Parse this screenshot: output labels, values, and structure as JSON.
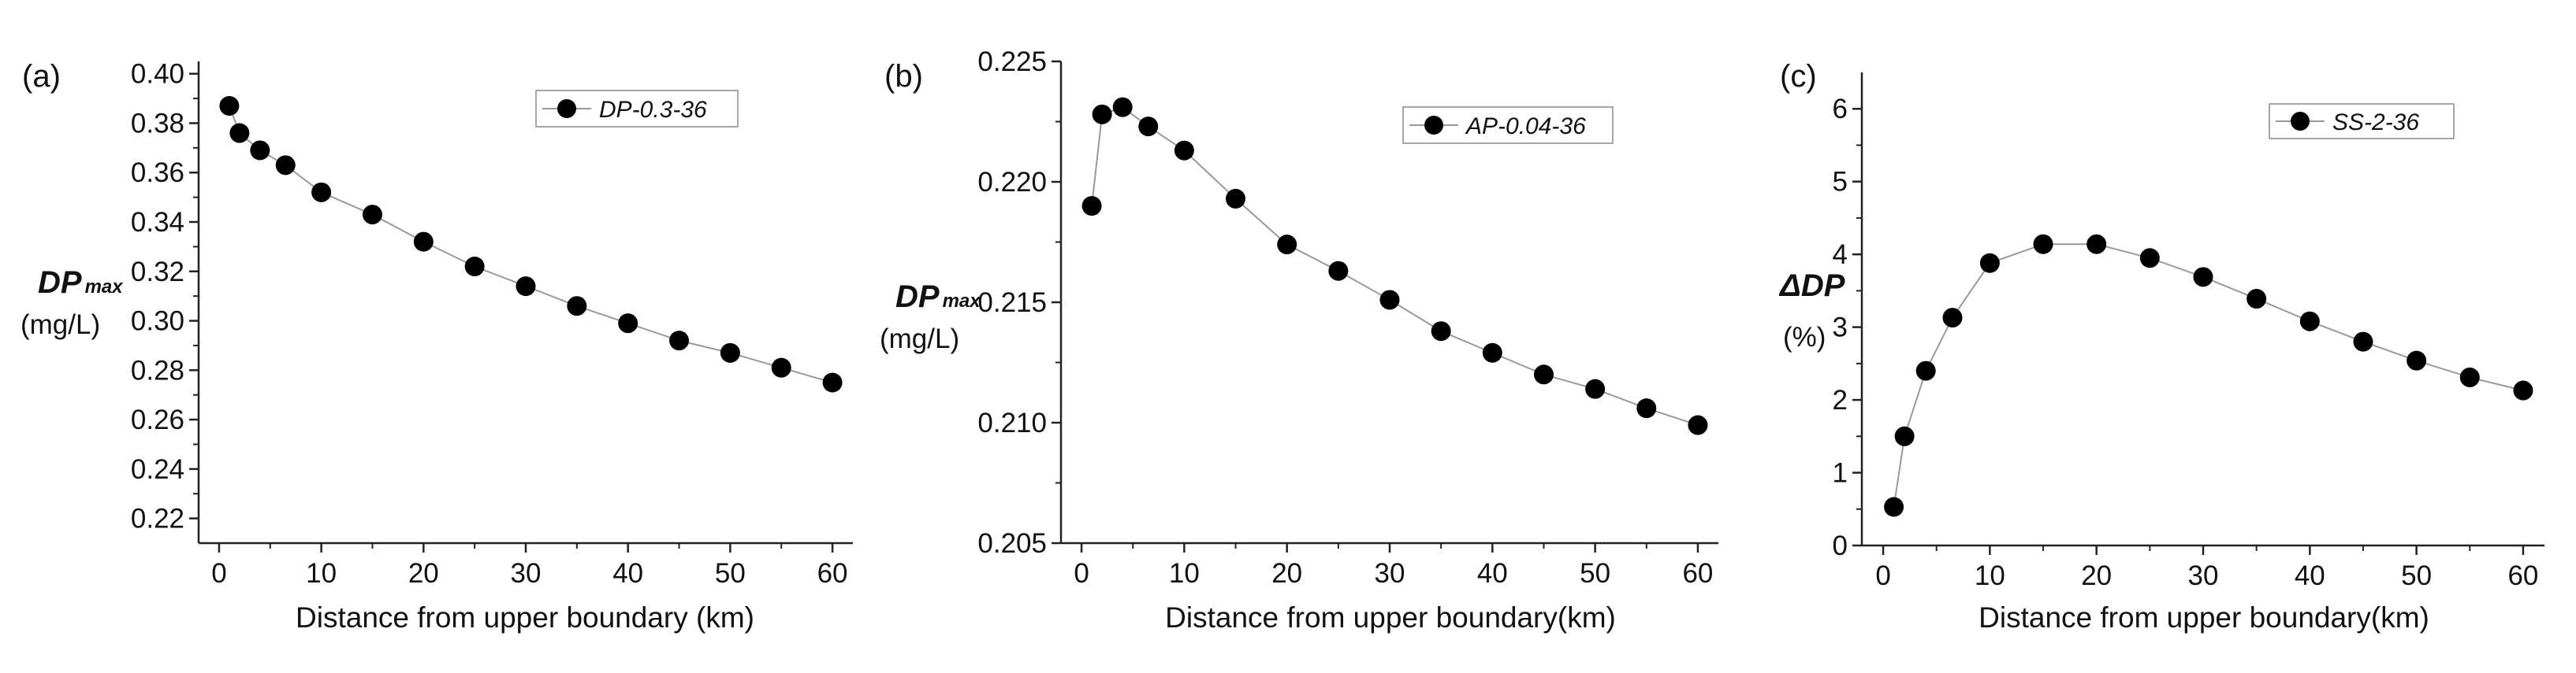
{
  "chart_data": [
    {
      "type": "line",
      "panel_label": "(a)",
      "xlabel": "Distance from upper boundary (km)",
      "ylabel": {
        "main": "DP",
        "sub": "max",
        "unit": "(mg/L)"
      },
      "xlim": [
        -2,
        62
      ],
      "ylim": [
        0.21,
        0.405
      ],
      "xticks": [
        0,
        10,
        20,
        30,
        40,
        50,
        60
      ],
      "xtick_labels": [
        "0",
        "10",
        "20",
        "30",
        "40",
        "50",
        "60"
      ],
      "yticks": [
        0.22,
        0.24,
        0.26,
        0.28,
        0.3,
        0.32,
        0.34,
        0.36,
        0.38,
        0.4
      ],
      "ytick_labels": [
        "0.22",
        "0.24",
        "0.26",
        "0.28",
        "0.30",
        "0.32",
        "0.34",
        "0.36",
        "0.38",
        "0.40"
      ],
      "legend": {
        "position": "top-right",
        "prefix": "DP",
        "suffix": "-0.3-36"
      },
      "grid": false,
      "series": [
        {
          "name": "DP-0.3-36",
          "x": [
            1,
            2,
            4,
            6.5,
            10,
            15,
            20,
            25,
            30,
            35,
            40,
            45,
            50,
            55,
            60
          ],
          "y": [
            0.387,
            0.376,
            0.369,
            0.363,
            0.352,
            0.343,
            0.332,
            0.322,
            0.314,
            0.306,
            0.299,
            0.292,
            0.287,
            0.281,
            0.275
          ]
        }
      ]
    },
    {
      "type": "line",
      "panel_label": "(b)",
      "xlabel": "Distance from upper boundary(km)",
      "ylabel": {
        "main": "DP",
        "sub": "max",
        "unit": "(mg/L)"
      },
      "xlim": [
        -2,
        62
      ],
      "ylim": [
        0.205,
        0.225
      ],
      "xticks": [
        0,
        10,
        20,
        30,
        40,
        50,
        60
      ],
      "xtick_labels": [
        "0",
        "10",
        "20",
        "30",
        "40",
        "50",
        "60"
      ],
      "yticks": [
        0.205,
        0.21,
        0.215,
        0.22,
        0.225
      ],
      "ytick_labels": [
        "0.205",
        "0.210",
        "0.215",
        "0.220",
        "0.225"
      ],
      "legend": {
        "position": "top-right",
        "prefix": "AP",
        "suffix": "-0.04-36"
      },
      "grid": false,
      "series": [
        {
          "name": "AP-0.04-36",
          "x": [
            1,
            2,
            4,
            6.5,
            10,
            15,
            20,
            25,
            30,
            35,
            40,
            45,
            50,
            55,
            60
          ],
          "y": [
            0.219,
            0.2228,
            0.2231,
            0.2223,
            0.2213,
            0.2193,
            0.2174,
            0.2163,
            0.2151,
            0.2138,
            0.2129,
            0.212,
            0.2114,
            0.2106,
            0.2099
          ]
        }
      ]
    },
    {
      "type": "line",
      "panel_label": "(c)",
      "xlabel": "Distance from upper boundary(km)",
      "ylabel": {
        "main": "ΔDP",
        "sub": "",
        "unit": "(%)"
      },
      "xlim": [
        -2,
        62
      ],
      "ylim": [
        0,
        6.5
      ],
      "xticks": [
        0,
        10,
        20,
        30,
        40,
        50,
        60
      ],
      "xtick_labels": [
        "0",
        "10",
        "20",
        "30",
        "40",
        "50",
        "60"
      ],
      "yticks": [
        0,
        1,
        2,
        3,
        4,
        5,
        6
      ],
      "ytick_labels": [
        "0",
        "1",
        "2",
        "3",
        "4",
        "5",
        "6"
      ],
      "legend": {
        "position": "top-right",
        "prefix": "SS",
        "suffix": "-2-36"
      },
      "grid": false,
      "series": [
        {
          "name": "SS-2-36",
          "x": [
            1,
            2,
            4,
            6.5,
            10,
            15,
            20,
            25,
            30,
            35,
            40,
            45,
            50,
            55,
            60
          ],
          "y": [
            0.53,
            1.5,
            2.4,
            3.13,
            3.88,
            4.14,
            4.14,
            3.95,
            3.69,
            3.39,
            3.08,
            2.8,
            2.54,
            2.31,
            2.13
          ]
        }
      ]
    }
  ]
}
